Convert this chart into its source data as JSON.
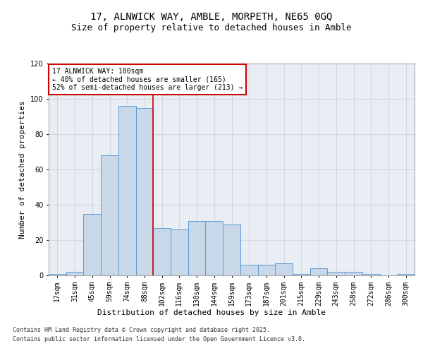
{
  "title_line1": "17, ALNWICK WAY, AMBLE, MORPETH, NE65 0GQ",
  "title_line2": "Size of property relative to detached houses in Amble",
  "xlabel": "Distribution of detached houses by size in Amble",
  "ylabel": "Number of detached properties",
  "categories": [
    "17sqm",
    "31sqm",
    "45sqm",
    "59sqm",
    "74sqm",
    "88sqm",
    "102sqm",
    "116sqm",
    "130sqm",
    "144sqm",
    "159sqm",
    "173sqm",
    "187sqm",
    "201sqm",
    "215sqm",
    "229sqm",
    "243sqm",
    "258sqm",
    "272sqm",
    "286sqm",
    "300sqm"
  ],
  "bar_values": [
    1,
    2,
    35,
    68,
    96,
    95,
    27,
    26,
    31,
    31,
    29,
    6,
    6,
    7,
    1,
    4,
    2,
    2,
    1,
    0,
    1
  ],
  "bar_color": "#c8d8e8",
  "bar_edge_color": "#5b9bd5",
  "annotation_text": "17 ALNWICK WAY: 100sqm\n← 40% of detached houses are smaller (165)\n52% of semi-detached houses are larger (213) →",
  "annotation_box_color": "#ffffff",
  "annotation_box_edge": "#cc0000",
  "ylim": [
    0,
    120
  ],
  "yticks": [
    0,
    20,
    40,
    60,
    80,
    100,
    120
  ],
  "grid_color": "#d0d8e0",
  "bg_color": "#e8eef4",
  "footnote1": "Contains HM Land Registry data © Crown copyright and database right 2025.",
  "footnote2": "Contains public sector information licensed under the Open Government Licence v3.0.",
  "line_color": "#cc0000",
  "prop_line_index": 6,
  "title_fontsize": 10,
  "subtitle_fontsize": 9,
  "tick_fontsize": 7,
  "ylabel_fontsize": 8,
  "xlabel_fontsize": 8,
  "annot_fontsize": 7,
  "footnote_fontsize": 6
}
